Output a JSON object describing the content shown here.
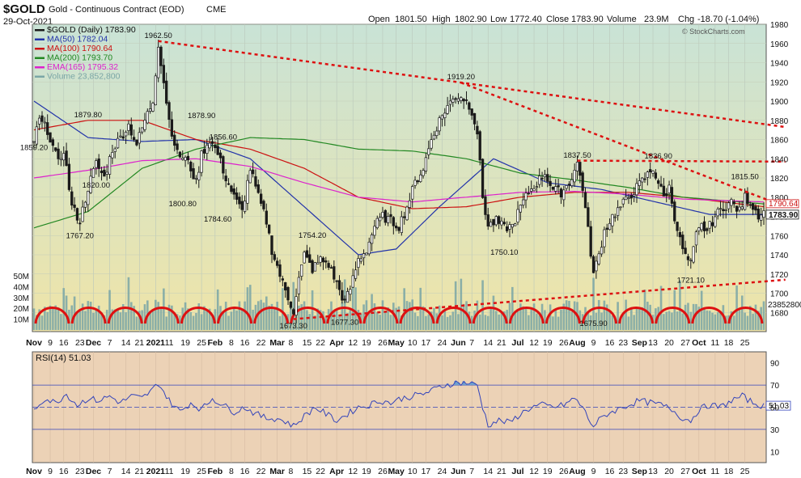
{
  "header": {
    "symbol": "$GOLD",
    "name": "Gold - Continuous Contract (EOD)",
    "exchange": "CME",
    "date": "29-Oct-2021",
    "open_label": "Open",
    "open": "1801.50",
    "high_label": "High",
    "high": "1802.90",
    "low_label": "Low",
    "low": "1772.40",
    "close_label": "Close",
    "close": "1783.90",
    "volume_label": "Volume",
    "volume": "23.9M",
    "chg_label": "Chg",
    "chg": "-18.70 (-1.04%)",
    "watermark": "© StockCharts.com"
  },
  "colors": {
    "price_bg_top": "#c9e3d6",
    "price_bg_bottom": "#efe4a8",
    "rsi_bg": "#ecd2b6",
    "candle": "#1a1a1a",
    "ma50": "#2233aa",
    "ma100": "#cc1111",
    "ma200": "#228822",
    "ema165": "#dd22cc",
    "volume": "#7aa6a6",
    "trend": "#dd1111",
    "arcs": "#dd1111",
    "rsi_line": "#3344bb",
    "rsi_fill": "#6a9fd0"
  },
  "chart_data": [
    {
      "type": "candlestick",
      "title": "$GOLD Gold - Continuous Contract (EOD) CME",
      "ylim": [
        1660,
        1980
      ],
      "y_ticks": [
        1680,
        1700,
        1720,
        1740,
        1760,
        1780,
        1800,
        1820,
        1840,
        1860,
        1880,
        1900,
        1920,
        1940,
        1960,
        1980
      ],
      "x_tick_labels": [
        "Nov",
        "9",
        "16",
        "23",
        "Dec",
        "7",
        "14",
        "21",
        "2021",
        "11",
        "19",
        "25",
        "Feb",
        "8",
        "16",
        "22",
        "Mar",
        "8",
        "15",
        "22",
        "Apr",
        "12",
        "19",
        "26",
        "May",
        "10",
        "17",
        "24",
        "Jun",
        "7",
        "14",
        "21",
        "Jul",
        "12",
        "19",
        "26",
        "Aug",
        "9",
        "16",
        "23",
        "Sep",
        "13",
        "20",
        "27",
        "Oct",
        "11",
        "18",
        "25"
      ],
      "legend": [
        {
          "label": "$GOLD (Daily) 1783.90",
          "color": "#1a1a1a"
        },
        {
          "label": "MA(50) 1782.04",
          "color": "#2233aa"
        },
        {
          "label": "MA(100) 1790.64",
          "color": "#cc1111"
        },
        {
          "label": "MA(200) 1793.70",
          "color": "#228822"
        },
        {
          "label": "EMA(165) 1795.32",
          "color": "#dd22cc"
        },
        {
          "label": "Volume 23,852,800",
          "color": "#7aa6a6"
        }
      ],
      "close_anchors": [
        [
          0,
          1859
        ],
        [
          2,
          1880
        ],
        [
          5,
          1870
        ],
        [
          9,
          1835
        ],
        [
          11,
          1850
        ],
        [
          14,
          1790
        ],
        [
          17,
          1775
        ],
        [
          20,
          1810
        ],
        [
          23,
          1835
        ],
        [
          26,
          1820
        ],
        [
          29,
          1850
        ],
        [
          32,
          1862
        ],
        [
          35,
          1875
        ],
        [
          38,
          1855
        ],
        [
          41,
          1880
        ],
        [
          44,
          1900
        ],
        [
          46,
          1960
        ],
        [
          48,
          1920
        ],
        [
          50,
          1880
        ],
        [
          53,
          1845
        ],
        [
          56,
          1840
        ],
        [
          58,
          1830
        ],
        [
          60,
          1815
        ],
        [
          62,
          1845
        ],
        [
          65,
          1860
        ],
        [
          68,
          1845
        ],
        [
          71,
          1820
        ],
        [
          74,
          1800
        ],
        [
          77,
          1785
        ],
        [
          80,
          1830
        ],
        [
          83,
          1800
        ],
        [
          86,
          1775
        ],
        [
          88,
          1745
        ],
        [
          90,
          1728
        ],
        [
          92,
          1710
        ],
        [
          94,
          1695
        ],
        [
          96,
          1682
        ],
        [
          98,
          1715
        ],
        [
          100,
          1740
        ],
        [
          103,
          1725
        ],
        [
          106,
          1735
        ],
        [
          109,
          1730
        ],
        [
          112,
          1710
        ],
        [
          115,
          1690
        ],
        [
          117,
          1705
        ],
        [
          120,
          1735
        ],
        [
          123,
          1745
        ],
        [
          126,
          1770
        ],
        [
          129,
          1780
        ],
        [
          132,
          1775
        ],
        [
          135,
          1770
        ],
        [
          138,
          1790
        ],
        [
          141,
          1815
        ],
        [
          144,
          1830
        ],
        [
          147,
          1860
        ],
        [
          150,
          1880
        ],
        [
          153,
          1895
        ],
        [
          156,
          1905
        ],
        [
          158,
          1905
        ],
        [
          160,
          1900
        ],
        [
          162,
          1890
        ],
        [
          164,
          1868
        ],
        [
          166,
          1800
        ],
        [
          168,
          1770
        ],
        [
          171,
          1775
        ],
        [
          174,
          1768
        ],
        [
          177,
          1770
        ],
        [
          180,
          1790
        ],
        [
          183,
          1805
        ],
        [
          186,
          1815
        ],
        [
          189,
          1825
        ],
        [
          192,
          1808
        ],
        [
          195,
          1805
        ],
        [
          198,
          1815
        ],
        [
          201,
          1835
        ],
        [
          203,
          1810
        ],
        [
          205,
          1765
        ],
        [
          207,
          1720
        ],
        [
          209,
          1740
        ],
        [
          211,
          1765
        ],
        [
          214,
          1780
        ],
        [
          217,
          1790
        ],
        [
          220,
          1800
        ],
        [
          223,
          1810
        ],
        [
          226,
          1820
        ],
        [
          229,
          1830
        ],
        [
          231,
          1815
        ],
        [
          233,
          1800
        ],
        [
          235,
          1810
        ],
        [
          237,
          1780
        ],
        [
          239,
          1755
        ],
        [
          241,
          1738
        ],
        [
          243,
          1730
        ],
        [
          245,
          1760
        ],
        [
          247,
          1770
        ],
        [
          249,
          1765
        ],
        [
          252,
          1780
        ],
        [
          255,
          1790
        ],
        [
          258,
          1795
        ],
        [
          261,
          1785
        ],
        [
          263,
          1800
        ],
        [
          265,
          1795
        ],
        [
          268,
          1782
        ],
        [
          270,
          1784
        ]
      ],
      "ma_anchors": {
        "ma50": [
          [
            0,
            1900
          ],
          [
            20,
            1862
          ],
          [
            40,
            1858
          ],
          [
            60,
            1860
          ],
          [
            80,
            1840
          ],
          [
            100,
            1790
          ],
          [
            120,
            1740
          ],
          [
            134,
            1746
          ],
          [
            150,
            1790
          ],
          [
            170,
            1840
          ],
          [
            190,
            1815
          ],
          [
            210,
            1808
          ],
          [
            230,
            1795
          ],
          [
            250,
            1782
          ],
          [
            270,
            1782
          ]
        ],
        "ma100": [
          [
            0,
            1870
          ],
          [
            20,
            1880
          ],
          [
            40,
            1880
          ],
          [
            60,
            1860
          ],
          [
            80,
            1850
          ],
          [
            100,
            1830
          ],
          [
            120,
            1800
          ],
          [
            140,
            1788
          ],
          [
            160,
            1790
          ],
          [
            180,
            1800
          ],
          [
            200,
            1805
          ],
          [
            220,
            1805
          ],
          [
            240,
            1800
          ],
          [
            270,
            1790
          ]
        ],
        "ma200": [
          [
            0,
            1768
          ],
          [
            20,
            1785
          ],
          [
            40,
            1830
          ],
          [
            60,
            1850
          ],
          [
            80,
            1862
          ],
          [
            100,
            1860
          ],
          [
            120,
            1850
          ],
          [
            140,
            1848
          ],
          [
            160,
            1840
          ],
          [
            180,
            1825
          ],
          [
            200,
            1818
          ],
          [
            220,
            1810
          ],
          [
            240,
            1800
          ],
          [
            270,
            1793
          ]
        ],
        "ema165": [
          [
            0,
            1820
          ],
          [
            20,
            1828
          ],
          [
            40,
            1838
          ],
          [
            60,
            1840
          ],
          [
            80,
            1832
          ],
          [
            100,
            1815
          ],
          [
            120,
            1800
          ],
          [
            140,
            1795
          ],
          [
            160,
            1800
          ],
          [
            180,
            1805
          ],
          [
            200,
            1806
          ],
          [
            220,
            1803
          ],
          [
            240,
            1798
          ],
          [
            270,
            1795
          ]
        ]
      },
      "price_labels": [
        {
          "text": "1859.20",
          "i": 0,
          "v": 1859.2,
          "pos": "below"
        },
        {
          "text": "1879.80",
          "i": 20,
          "v": 1879.8,
          "pos": "above"
        },
        {
          "text": "1820.00",
          "i": 23,
          "v": 1820.0,
          "pos": "below"
        },
        {
          "text": "1767.20",
          "i": 17,
          "v": 1767.2,
          "pos": "below"
        },
        {
          "text": "1962.50",
          "i": 46,
          "v": 1962.5,
          "pos": "above"
        },
        {
          "text": "1878.90",
          "i": 62,
          "v": 1878.9,
          "pos": "above"
        },
        {
          "text": "1856.60",
          "i": 70,
          "v": 1856.6,
          "pos": "above"
        },
        {
          "text": "1800.80",
          "i": 55,
          "v": 1800.8,
          "pos": "below"
        },
        {
          "text": "1784.60",
          "i": 68,
          "v": 1784.6,
          "pos": "below"
        },
        {
          "text": "1754.20",
          "i": 103,
          "v": 1754.2,
          "pos": "above"
        },
        {
          "text": "1673.30",
          "i": 96,
          "v": 1673.3,
          "pos": "below"
        },
        {
          "text": "1677.30",
          "i": 115,
          "v": 1677.3,
          "pos": "below"
        },
        {
          "text": "1919.20",
          "i": 158,
          "v": 1919.2,
          "pos": "above"
        },
        {
          "text": "1750.10",
          "i": 174,
          "v": 1750.1,
          "pos": "below"
        },
        {
          "text": "1837.50",
          "i": 201,
          "v": 1837.5,
          "pos": "above"
        },
        {
          "text": "1675.90",
          "i": 207,
          "v": 1675.9,
          "pos": "below"
        },
        {
          "text": "1836.90",
          "i": 231,
          "v": 1836.9,
          "pos": "above"
        },
        {
          "text": "1721.10",
          "i": 243,
          "v": 1721.1,
          "pos": "below"
        },
        {
          "text": "1815.50",
          "i": 263,
          "v": 1815.5,
          "pos": "above"
        }
      ],
      "trendlines": [
        {
          "from": [
            46,
            1962.5
          ],
          "to": [
            278,
            1873
          ]
        },
        {
          "from": [
            158,
            1919.2
          ],
          "to": [
            278,
            1790
          ]
        },
        {
          "from": [
            201,
            1838
          ],
          "to": [
            278,
            1837
          ]
        },
        {
          "from": [
            96,
            1673
          ],
          "to": [
            278,
            1714
          ]
        }
      ],
      "right_labels": {
        "ma100": "1790.64",
        "close": "1783.90"
      }
    },
    {
      "type": "bar",
      "title": "Volume",
      "y_ticks": [
        {
          "label": "10M",
          "v": 10
        },
        {
          "label": "20M",
          "v": 20
        },
        {
          "label": "30M",
          "v": 30
        },
        {
          "label": "40M",
          "v": 40
        },
        {
          "label": "50M",
          "v": 50
        }
      ],
      "unit": "M",
      "ylim": [
        0,
        62
      ],
      "last_value_label": "23852800",
      "arc_count": 20
    },
    {
      "type": "line",
      "title": "RSI(14) 51.03",
      "ylim": [
        0,
        100
      ],
      "y_ticks": [
        10,
        30,
        50,
        70,
        90
      ],
      "levels": [
        30,
        50,
        70
      ],
      "last_value": "51.03",
      "anchors": [
        [
          0,
          48
        ],
        [
          4,
          58
        ],
        [
          8,
          54
        ],
        [
          12,
          62
        ],
        [
          16,
          52
        ],
        [
          20,
          58
        ],
        [
          24,
          56
        ],
        [
          28,
          60
        ],
        [
          32,
          54
        ],
        [
          36,
          60
        ],
        [
          40,
          58
        ],
        [
          44,
          66
        ],
        [
          46,
          72
        ],
        [
          50,
          56
        ],
        [
          54,
          46
        ],
        [
          58,
          54
        ],
        [
          62,
          48
        ],
        [
          66,
          58
        ],
        [
          70,
          52
        ],
        [
          74,
          46
        ],
        [
          78,
          50
        ],
        [
          82,
          44
        ],
        [
          86,
          40
        ],
        [
          90,
          40
        ],
        [
          94,
          36
        ],
        [
          96,
          33
        ],
        [
          100,
          42
        ],
        [
          104,
          50
        ],
        [
          108,
          44
        ],
        [
          112,
          38
        ],
        [
          116,
          44
        ],
        [
          120,
          50
        ],
        [
          124,
          52
        ],
        [
          128,
          56
        ],
        [
          132,
          54
        ],
        [
          136,
          58
        ],
        [
          140,
          60
        ],
        [
          144,
          62
        ],
        [
          148,
          66
        ],
        [
          152,
          70
        ],
        [
          156,
          72
        ],
        [
          160,
          72
        ],
        [
          164,
          70
        ],
        [
          166,
          50
        ],
        [
          168,
          34
        ],
        [
          172,
          38
        ],
        [
          176,
          36
        ],
        [
          180,
          44
        ],
        [
          184,
          50
        ],
        [
          188,
          52
        ],
        [
          192,
          50
        ],
        [
          196,
          52
        ],
        [
          200,
          58
        ],
        [
          203,
          50
        ],
        [
          205,
          40
        ],
        [
          207,
          33
        ],
        [
          209,
          38
        ],
        [
          212,
          44
        ],
        [
          216,
          48
        ],
        [
          220,
          52
        ],
        [
          224,
          56
        ],
        [
          228,
          54
        ],
        [
          232,
          52
        ],
        [
          236,
          48
        ],
        [
          240,
          40
        ],
        [
          243,
          38
        ],
        [
          246,
          48
        ],
        [
          250,
          52
        ],
        [
          254,
          50
        ],
        [
          258,
          56
        ],
        [
          262,
          60
        ],
        [
          266,
          54
        ],
        [
          270,
          51
        ]
      ],
      "x_tick_labels": [
        "Nov",
        "9",
        "16",
        "23",
        "Dec",
        "7",
        "14",
        "21",
        "2021",
        "11",
        "19",
        "25",
        "Feb",
        "8",
        "16",
        "22",
        "Mar",
        "8",
        "15",
        "22",
        "Apr",
        "12",
        "19",
        "26",
        "May",
        "10",
        "17",
        "24",
        "Jun",
        "7",
        "14",
        "21",
        "Jul",
        "12",
        "19",
        "26",
        "Aug",
        "9",
        "16",
        "23",
        "Sep",
        "13",
        "20",
        "27",
        "Oct",
        "11",
        "18",
        "25"
      ]
    }
  ]
}
